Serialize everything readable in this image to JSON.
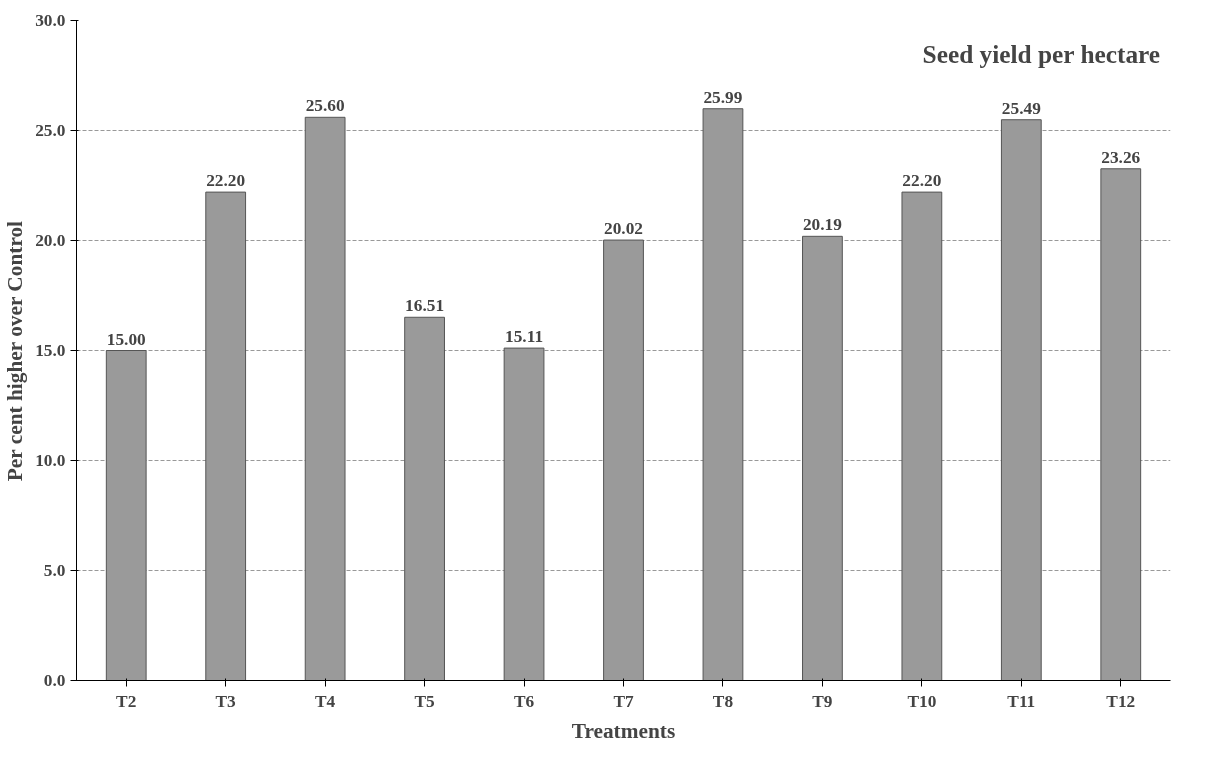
{
  "chart_data": {
    "type": "bar",
    "title": "Seed yield per hectare",
    "xlabel": "Treatments",
    "ylabel": "Per cent higher over Control",
    "categories": [
      "T2",
      "T3",
      "T4",
      "T5",
      "T6",
      "T7",
      "T8",
      "T9",
      "T10",
      "T11",
      "T12"
    ],
    "values": [
      15.0,
      22.2,
      25.6,
      16.51,
      15.11,
      20.02,
      25.99,
      20.19,
      22.2,
      25.49,
      23.26
    ],
    "value_labels": [
      "15.00",
      "22.20",
      "25.60",
      "16.51",
      "15.11",
      "20.02",
      "25.99",
      "20.19",
      "22.20",
      "25.49",
      "23.26"
    ],
    "color": "#9a9a9a",
    "ylim": [
      0,
      30
    ],
    "yticks": [
      {
        "value": 0,
        "label": "0.0"
      },
      {
        "value": 5,
        "label": "5.0"
      },
      {
        "value": 10,
        "label": "10.0"
      },
      {
        "value": 15,
        "label": "15.0"
      },
      {
        "value": 20,
        "label": "20.0"
      },
      {
        "value": 25,
        "label": "25.0"
      },
      {
        "value": 30,
        "label": "30.0"
      }
    ],
    "grid": "y"
  }
}
